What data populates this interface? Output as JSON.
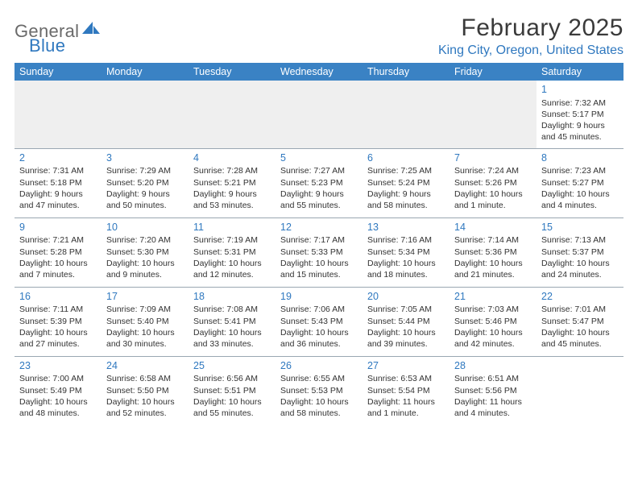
{
  "brand": {
    "part1": "General",
    "part2": "Blue"
  },
  "title": "February 2025",
  "location": "King City, Oregon, United States",
  "colors": {
    "header_bg": "#3a82c4",
    "header_text": "#ffffff",
    "accent": "#2f78bf",
    "body_text": "#333333",
    "logo_gray": "#6a6a6a",
    "rule": "#9aa7b2",
    "blank_bg": "#efefef",
    "page_bg": "#ffffff"
  },
  "typography": {
    "title_fontsize": 30,
    "location_fontsize": 16,
    "dayheader_fontsize": 12.5,
    "daynum_fontsize": 12.5,
    "cell_fontsize": 10.5
  },
  "day_headers": [
    "Sunday",
    "Monday",
    "Tuesday",
    "Wednesday",
    "Thursday",
    "Friday",
    "Saturday"
  ],
  "weeks": [
    [
      null,
      null,
      null,
      null,
      null,
      null,
      {
        "n": "1",
        "sr": "Sunrise: 7:32 AM",
        "ss": "Sunset: 5:17 PM",
        "d1": "Daylight: 9 hours",
        "d2": "and 45 minutes."
      }
    ],
    [
      {
        "n": "2",
        "sr": "Sunrise: 7:31 AM",
        "ss": "Sunset: 5:18 PM",
        "d1": "Daylight: 9 hours",
        "d2": "and 47 minutes."
      },
      {
        "n": "3",
        "sr": "Sunrise: 7:29 AM",
        "ss": "Sunset: 5:20 PM",
        "d1": "Daylight: 9 hours",
        "d2": "and 50 minutes."
      },
      {
        "n": "4",
        "sr": "Sunrise: 7:28 AM",
        "ss": "Sunset: 5:21 PM",
        "d1": "Daylight: 9 hours",
        "d2": "and 53 minutes."
      },
      {
        "n": "5",
        "sr": "Sunrise: 7:27 AM",
        "ss": "Sunset: 5:23 PM",
        "d1": "Daylight: 9 hours",
        "d2": "and 55 minutes."
      },
      {
        "n": "6",
        "sr": "Sunrise: 7:25 AM",
        "ss": "Sunset: 5:24 PM",
        "d1": "Daylight: 9 hours",
        "d2": "and 58 minutes."
      },
      {
        "n": "7",
        "sr": "Sunrise: 7:24 AM",
        "ss": "Sunset: 5:26 PM",
        "d1": "Daylight: 10 hours",
        "d2": "and 1 minute."
      },
      {
        "n": "8",
        "sr": "Sunrise: 7:23 AM",
        "ss": "Sunset: 5:27 PM",
        "d1": "Daylight: 10 hours",
        "d2": "and 4 minutes."
      }
    ],
    [
      {
        "n": "9",
        "sr": "Sunrise: 7:21 AM",
        "ss": "Sunset: 5:28 PM",
        "d1": "Daylight: 10 hours",
        "d2": "and 7 minutes."
      },
      {
        "n": "10",
        "sr": "Sunrise: 7:20 AM",
        "ss": "Sunset: 5:30 PM",
        "d1": "Daylight: 10 hours",
        "d2": "and 9 minutes."
      },
      {
        "n": "11",
        "sr": "Sunrise: 7:19 AM",
        "ss": "Sunset: 5:31 PM",
        "d1": "Daylight: 10 hours",
        "d2": "and 12 minutes."
      },
      {
        "n": "12",
        "sr": "Sunrise: 7:17 AM",
        "ss": "Sunset: 5:33 PM",
        "d1": "Daylight: 10 hours",
        "d2": "and 15 minutes."
      },
      {
        "n": "13",
        "sr": "Sunrise: 7:16 AM",
        "ss": "Sunset: 5:34 PM",
        "d1": "Daylight: 10 hours",
        "d2": "and 18 minutes."
      },
      {
        "n": "14",
        "sr": "Sunrise: 7:14 AM",
        "ss": "Sunset: 5:36 PM",
        "d1": "Daylight: 10 hours",
        "d2": "and 21 minutes."
      },
      {
        "n": "15",
        "sr": "Sunrise: 7:13 AM",
        "ss": "Sunset: 5:37 PM",
        "d1": "Daylight: 10 hours",
        "d2": "and 24 minutes."
      }
    ],
    [
      {
        "n": "16",
        "sr": "Sunrise: 7:11 AM",
        "ss": "Sunset: 5:39 PM",
        "d1": "Daylight: 10 hours",
        "d2": "and 27 minutes."
      },
      {
        "n": "17",
        "sr": "Sunrise: 7:09 AM",
        "ss": "Sunset: 5:40 PM",
        "d1": "Daylight: 10 hours",
        "d2": "and 30 minutes."
      },
      {
        "n": "18",
        "sr": "Sunrise: 7:08 AM",
        "ss": "Sunset: 5:41 PM",
        "d1": "Daylight: 10 hours",
        "d2": "and 33 minutes."
      },
      {
        "n": "19",
        "sr": "Sunrise: 7:06 AM",
        "ss": "Sunset: 5:43 PM",
        "d1": "Daylight: 10 hours",
        "d2": "and 36 minutes."
      },
      {
        "n": "20",
        "sr": "Sunrise: 7:05 AM",
        "ss": "Sunset: 5:44 PM",
        "d1": "Daylight: 10 hours",
        "d2": "and 39 minutes."
      },
      {
        "n": "21",
        "sr": "Sunrise: 7:03 AM",
        "ss": "Sunset: 5:46 PM",
        "d1": "Daylight: 10 hours",
        "d2": "and 42 minutes."
      },
      {
        "n": "22",
        "sr": "Sunrise: 7:01 AM",
        "ss": "Sunset: 5:47 PM",
        "d1": "Daylight: 10 hours",
        "d2": "and 45 minutes."
      }
    ],
    [
      {
        "n": "23",
        "sr": "Sunrise: 7:00 AM",
        "ss": "Sunset: 5:49 PM",
        "d1": "Daylight: 10 hours",
        "d2": "and 48 minutes."
      },
      {
        "n": "24",
        "sr": "Sunrise: 6:58 AM",
        "ss": "Sunset: 5:50 PM",
        "d1": "Daylight: 10 hours",
        "d2": "and 52 minutes."
      },
      {
        "n": "25",
        "sr": "Sunrise: 6:56 AM",
        "ss": "Sunset: 5:51 PM",
        "d1": "Daylight: 10 hours",
        "d2": "and 55 minutes."
      },
      {
        "n": "26",
        "sr": "Sunrise: 6:55 AM",
        "ss": "Sunset: 5:53 PM",
        "d1": "Daylight: 10 hours",
        "d2": "and 58 minutes."
      },
      {
        "n": "27",
        "sr": "Sunrise: 6:53 AM",
        "ss": "Sunset: 5:54 PM",
        "d1": "Daylight: 11 hours",
        "d2": "and 1 minute."
      },
      {
        "n": "28",
        "sr": "Sunrise: 6:51 AM",
        "ss": "Sunset: 5:56 PM",
        "d1": "Daylight: 11 hours",
        "d2": "and 4 minutes."
      },
      null
    ]
  ]
}
